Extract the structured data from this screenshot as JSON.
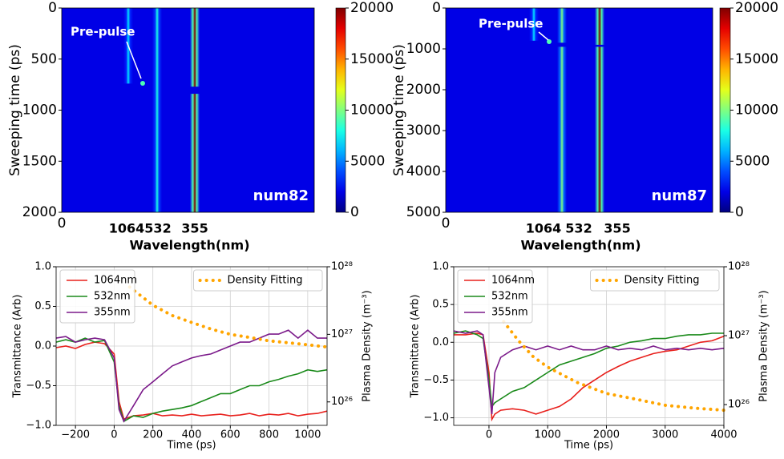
{
  "chart_data": [
    {
      "type": "streak",
      "xlabel": "Wavelength(nm)",
      "ylabel": "Sweeping time (ps)",
      "categories": [
        "1064",
        "532",
        "355"
      ],
      "values": [
        7000,
        8000,
        20000
      ],
      "spans": [
        [
          [
            0,
            740
          ]
        ],
        [
          [
            0,
            2000
          ]
        ],
        [
          [
            0,
            770
          ],
          [
            840,
            2000
          ]
        ]
      ],
      "xticks": [
        0
      ],
      "ylim": [
        2000,
        0
      ],
      "yticks": [
        0,
        500,
        1000,
        1500,
        2000
      ],
      "annotation": "Pre-pulse",
      "label": "num82",
      "colormap": "jet",
      "clim": [
        0,
        20000
      ],
      "cticks": [
        0,
        5000,
        10000,
        15000,
        20000
      ]
    },
    {
      "type": "streak",
      "xlabel": "Wavelength(nm)",
      "ylabel": "Sweeping time (ps)",
      "categories": [
        "1064",
        "532",
        "355"
      ],
      "values": [
        7000,
        10000,
        20000
      ],
      "spans": [
        [
          [
            0,
            800
          ]
        ],
        [
          [
            0,
            850
          ],
          [
            950,
            5000
          ]
        ],
        [
          [
            0,
            900
          ],
          [
            950,
            5000
          ]
        ]
      ],
      "xticks": [
        0
      ],
      "ylim": [
        5000,
        0
      ],
      "yticks": [
        0,
        1000,
        2000,
        3000,
        4000,
        5000
      ],
      "annotation": "Pre-pulse",
      "label": "num87",
      "colormap": "jet",
      "clim": [
        0,
        20000
      ],
      "cticks": [
        0,
        5000,
        10000,
        15000,
        20000
      ]
    },
    {
      "type": "line",
      "xlabel": "Time (ps)",
      "ylabel": "Transmittance (Arb)",
      "y2label": "Plasma Density (m⁻³)",
      "x": [
        -300,
        -250,
        -200,
        -150,
        -100,
        -50,
        0,
        25,
        50,
        100,
        150,
        200,
        250,
        300,
        350,
        400,
        450,
        500,
        550,
        600,
        650,
        700,
        750,
        800,
        850,
        900,
        950,
        1000,
        1050,
        1100
      ],
      "series": [
        {
          "name": "1064nm",
          "color": "#e8201c",
          "values": [
            -0.02,
            0.0,
            -0.03,
            0.02,
            0.05,
            0.03,
            -0.1,
            -0.7,
            -0.92,
            -0.88,
            -0.87,
            -0.85,
            -0.88,
            -0.87,
            -0.88,
            -0.86,
            -0.88,
            -0.87,
            -0.86,
            -0.88,
            -0.87,
            -0.85,
            -0.88,
            -0.86,
            -0.87,
            -0.85,
            -0.88,
            -0.86,
            -0.85,
            -0.82
          ]
        },
        {
          "name": "532nm",
          "color": "#1a8a1a",
          "values": [
            0.05,
            0.08,
            0.05,
            0.1,
            0.05,
            0.07,
            -0.2,
            -0.75,
            -0.95,
            -0.88,
            -0.9,
            -0.85,
            -0.82,
            -0.8,
            -0.78,
            -0.75,
            -0.7,
            -0.65,
            -0.6,
            -0.6,
            -0.55,
            -0.5,
            -0.5,
            -0.45,
            -0.42,
            -0.38,
            -0.35,
            -0.3,
            -0.32,
            -0.3
          ]
        },
        {
          "name": "355nm",
          "color": "#7b1a8a",
          "values": [
            0.1,
            0.12,
            0.05,
            0.08,
            0.1,
            0.08,
            -0.15,
            -0.8,
            -0.95,
            -0.75,
            -0.55,
            -0.45,
            -0.35,
            -0.25,
            -0.2,
            -0.15,
            -0.12,
            -0.1,
            -0.05,
            0.0,
            0.05,
            0.05,
            0.1,
            0.15,
            0.15,
            0.2,
            0.1,
            0.2,
            0.1,
            0.1
          ]
        },
        {
          "name": "Density Fitting",
          "color": "#ffa500",
          "axis": "y2",
          "linestyle": "dotted",
          "x": [
            80,
            150,
            200,
            300,
            400,
            500,
            600,
            700,
            800,
            900,
            1000,
            1100
          ],
          "values": [
            5e+27,
            3.5e+27,
            2.7e+27,
            1.9e+27,
            1.5e+27,
            1.2e+27,
            1e+27,
            9e+26,
            8e+26,
            7.5e+26,
            7e+26,
            6.5e+26
          ]
        }
      ],
      "xlim": [
        -300,
        1100
      ],
      "xticks": [
        {
          "value": -200,
          "label": "−200"
        },
        0,
        200,
        400,
        600,
        800,
        1000
      ],
      "ylim": [
        -1.0,
        1.0
      ],
      "yticks": [
        {
          "value": -1.0,
          "label": "−1.0"
        },
        {
          "value": -0.5,
          "label": "−0.5"
        },
        {
          "value": 0,
          "label": "0.0"
        },
        0.5,
        {
          "value": 1.0,
          "label": "1.0"
        }
      ],
      "y2lim": [
        4.5e+25,
        1e+28
      ],
      "y2scale": "log",
      "y2ticks": [
        {
          "value": 1e+26,
          "label": "10²⁶"
        },
        {
          "value": 1e+27,
          "label": "10²⁷"
        },
        {
          "value": 1e+28,
          "label": "10²⁸"
        }
      ],
      "grid": true,
      "legend": "upper left",
      "y2_legend": "upper right"
    },
    {
      "type": "line",
      "xlabel": "Time (ps)",
      "ylabel": "Transmittance (Arb)",
      "y2label": "Plasma Density (m⁻³)",
      "x": [
        -600,
        -400,
        -200,
        -100,
        0,
        50,
        100,
        200,
        400,
        600,
        800,
        1000,
        1200,
        1400,
        1600,
        1800,
        2000,
        2200,
        2400,
        2600,
        2800,
        3000,
        3200,
        3400,
        3600,
        3800,
        4000
      ],
      "series": [
        {
          "name": "1064nm",
          "color": "#e8201c",
          "values": [
            0.1,
            0.1,
            0.12,
            0.1,
            -0.4,
            -1.02,
            -0.95,
            -0.9,
            -0.88,
            -0.9,
            -0.95,
            -0.9,
            -0.85,
            -0.75,
            -0.6,
            -0.5,
            -0.4,
            -0.32,
            -0.25,
            -0.2,
            -0.15,
            -0.12,
            -0.1,
            -0.05,
            0.0,
            0.02,
            0.08
          ]
        },
        {
          "name": "532nm",
          "color": "#1a8a1a",
          "values": [
            0.12,
            0.15,
            0.1,
            0.05,
            -0.5,
            -0.85,
            -0.8,
            -0.75,
            -0.65,
            -0.6,
            -0.5,
            -0.4,
            -0.3,
            -0.25,
            -0.2,
            -0.15,
            -0.08,
            -0.05,
            0.0,
            0.02,
            0.05,
            0.05,
            0.08,
            0.1,
            0.1,
            0.12,
            0.12
          ]
        },
        {
          "name": "355nm",
          "color": "#7b1a8a",
          "values": [
            0.15,
            0.12,
            0.15,
            0.1,
            -0.6,
            -0.95,
            -0.4,
            -0.2,
            -0.1,
            -0.05,
            -0.1,
            -0.05,
            -0.1,
            -0.05,
            -0.1,
            -0.1,
            -0.05,
            -0.1,
            -0.08,
            -0.1,
            -0.05,
            -0.1,
            -0.08,
            -0.1,
            -0.08,
            -0.1,
            -0.08
          ]
        },
        {
          "name": "Density Fitting",
          "color": "#ffa500",
          "axis": "y2",
          "linestyle": "dotted",
          "x": [
            250,
            500,
            750,
            1000,
            1500,
            2000,
            2500,
            3000,
            3500,
            4000
          ],
          "values": [
            1.6e+27,
            8.5e+26,
            5e+26,
            3.5e+26,
            2.1e+26,
            1.45e+26,
            1.2e+26,
            9.8e+25,
            8.9e+25,
            8.3e+25
          ]
        }
      ],
      "xlim": [
        -600,
        4000
      ],
      "xticks": [
        0,
        1000,
        2000,
        3000,
        4000
      ],
      "ylim": [
        -1.1,
        1.0
      ],
      "yticks": [
        {
          "value": -1.0,
          "label": "−1.0"
        },
        {
          "value": -0.5,
          "label": "−0.5"
        },
        {
          "value": 0,
          "label": "0.0"
        },
        0.5,
        {
          "value": 1.0,
          "label": "1.0"
        }
      ],
      "y2lim": [
        5e+25,
        1e+28
      ],
      "y2scale": "log",
      "y2ticks": [
        {
          "value": 1e+26,
          "label": "10²⁶"
        },
        {
          "value": 1e+27,
          "label": "10²⁷"
        },
        {
          "value": 1e+28,
          "label": "10²⁸"
        }
      ],
      "grid": true,
      "legend": "upper left",
      "y2_legend": "upper right"
    }
  ]
}
